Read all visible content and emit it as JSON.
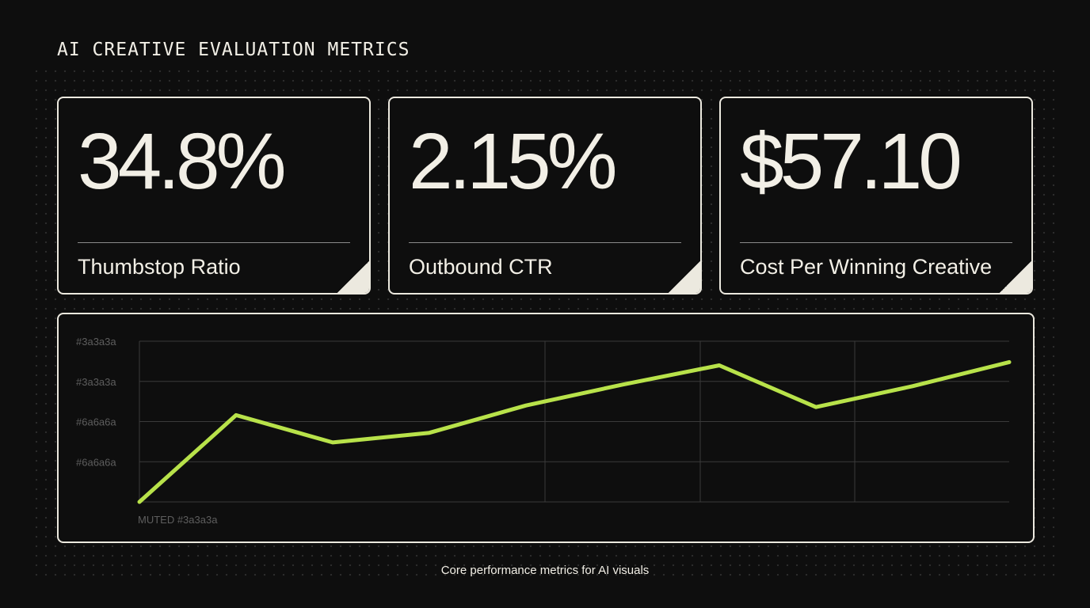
{
  "title": "AI CREATIVE EVALUATION METRICS",
  "cards": [
    {
      "value": "34.8%",
      "label": "Thumbstop Ratio"
    },
    {
      "value": "2.15%",
      "label": "Outbound CTR"
    },
    {
      "value": "$57.10",
      "label": "Cost Per Winning Creative"
    }
  ],
  "caption": "Core performance metrics for AI visuals",
  "colors": {
    "background": "#0e0e0e",
    "card_border": "#ece9df",
    "text": "#f2efe6",
    "line": "#b8e24a",
    "grid": "#3a3a3a",
    "muted_text": "#6a6a6a"
  },
  "chart_data": {
    "type": "line",
    "title": "",
    "xlabel": "MUTED #3a3a3a",
    "ylabel": "",
    "y_tick_labels": [
      "#3a3a3a",
      "#3a3a3a",
      "#6a6a6a",
      "#6a6a6a"
    ],
    "x": [
      0,
      1,
      2,
      3,
      4,
      5,
      6,
      7,
      8,
      9
    ],
    "ylim": [
      0,
      100
    ],
    "grid": true,
    "series": [
      {
        "values": [
          0,
          54,
          37,
          43,
          60,
          73,
          85,
          59,
          72,
          87
        ]
      }
    ]
  }
}
